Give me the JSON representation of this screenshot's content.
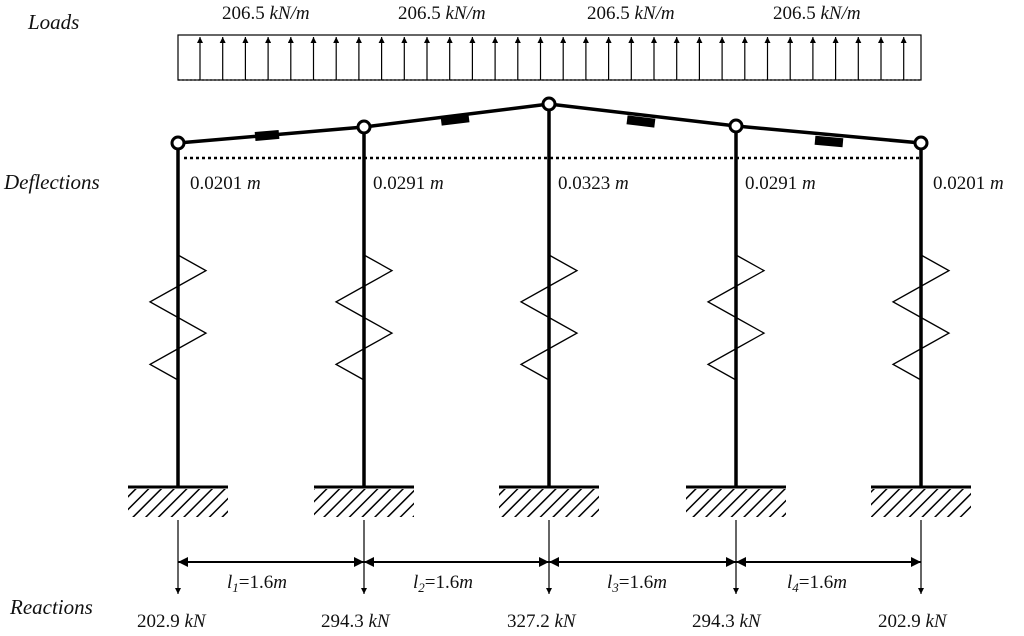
{
  "rows": {
    "loads": "Loads",
    "deflections": "Deflections",
    "reactions": "Reactions"
  },
  "loads": [
    {
      "value": "206.5",
      "unit": "kN/m"
    },
    {
      "value": "206.5",
      "unit": "kN/m"
    },
    {
      "value": "206.5",
      "unit": "kN/m"
    },
    {
      "value": "206.5",
      "unit": "kN/m"
    }
  ],
  "deflections": [
    {
      "value": "0.0201",
      "unit": "m"
    },
    {
      "value": "0.0291",
      "unit": "m"
    },
    {
      "value": "0.0323",
      "unit": "m"
    },
    {
      "value": "0.0291",
      "unit": "m"
    },
    {
      "value": "0.0201",
      "unit": "m"
    }
  ],
  "spans": [
    {
      "symbol": "l",
      "index": "1",
      "value": "=1.6",
      "unit": "m"
    },
    {
      "symbol": "l",
      "index": "2",
      "value": "=1.6",
      "unit": "m"
    },
    {
      "symbol": "l",
      "index": "3",
      "value": "=1.6",
      "unit": "m"
    },
    {
      "symbol": "l",
      "index": "4",
      "value": "=1.6",
      "unit": "m"
    }
  ],
  "reactions": [
    {
      "value": "202.9",
      "unit": "kN"
    },
    {
      "value": "294.3",
      "unit": "kN"
    },
    {
      "value": "327.2",
      "unit": "kN"
    },
    {
      "value": "294.3",
      "unit": "kN"
    },
    {
      "value": "202.9",
      "unit": "kN"
    }
  ],
  "colors": {
    "line": "#000000",
    "text": "#111111"
  }
}
